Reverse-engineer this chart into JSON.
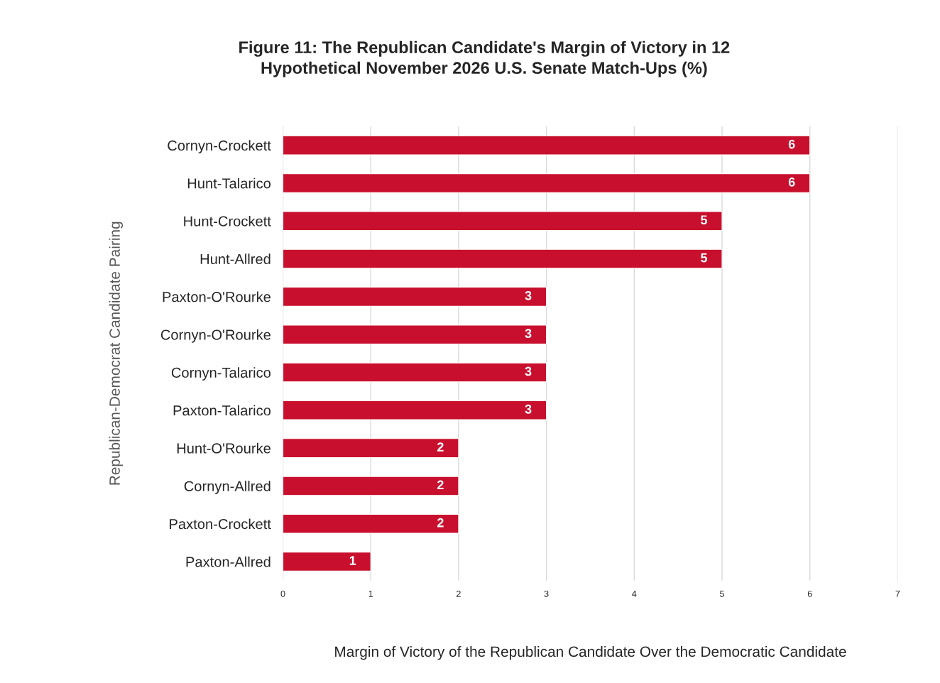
{
  "chart_data": {
    "type": "bar",
    "orientation": "horizontal",
    "title": "Figure 11: The Republican Candidate's Margin of Victory in 12\nHypothetical November 2026 U.S. Senate Match-Ups (%)",
    "xlabel": "Margin of Victory of the Republican Candidate Over the Democratic Candidate",
    "ylabel": "Republican-Democrat Candidate Pairing",
    "categories": [
      "Cornyn-Crockett",
      "Hunt-Talarico",
      "Hunt-Crockett",
      "Hunt-Allred",
      "Paxton-O'Rourke",
      "Cornyn-O'Rourke",
      "Cornyn-Talarico",
      "Paxton-Talarico",
      "Hunt-O'Rourke",
      "Cornyn-Allred",
      "Paxton-Crockett",
      "Paxton-Allred"
    ],
    "values": [
      6,
      6,
      5,
      5,
      3,
      3,
      3,
      3,
      2,
      2,
      2,
      1
    ],
    "color": "#c8102e",
    "xlim": [
      0,
      7
    ],
    "xticks": [
      0,
      1,
      2,
      3,
      4,
      5,
      6,
      7
    ],
    "grid": "x",
    "data_labels": true
  }
}
